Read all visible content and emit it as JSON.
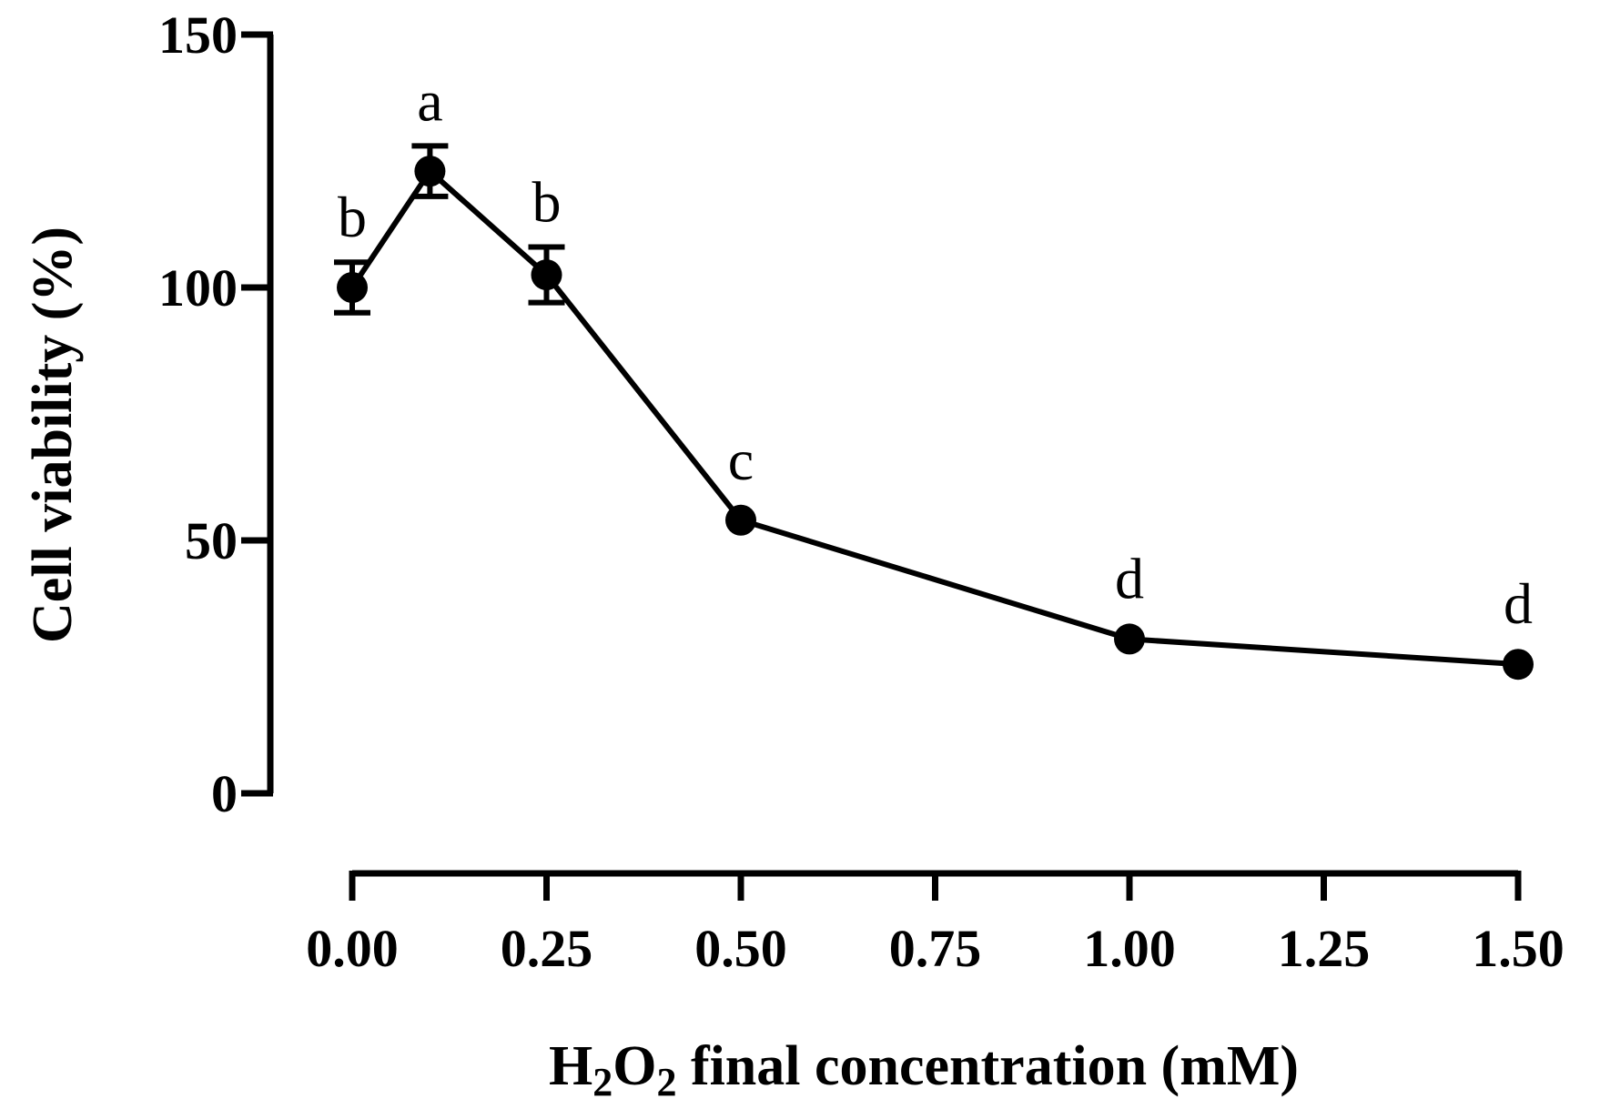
{
  "chart_data": {
    "type": "line",
    "title": "",
    "xlabel": {
      "prefix": "H",
      "sub1": "2",
      "mid": "O",
      "sub2": "2",
      "suffix": " final concentration (mM)"
    },
    "ylabel": "Cell viability (%)",
    "xlim": [
      0,
      1.5
    ],
    "ylim": [
      0,
      150
    ],
    "x_ticks": [
      0,
      0.25,
      0.5,
      0.75,
      1.0,
      1.25,
      1.5
    ],
    "x_tick_labels": [
      "0.00",
      "0.25",
      "0.50",
      "0.75",
      "1.00",
      "1.25",
      "1.50"
    ],
    "y_ticks": [
      0,
      50,
      100,
      150
    ],
    "y_tick_labels": [
      "0",
      "50",
      "100",
      "150"
    ],
    "grid": false,
    "series": [
      {
        "x": [
          0,
          0.1,
          0.25,
          0.5,
          1.0,
          1.5
        ],
        "y": [
          100,
          123,
          102.5,
          54,
          30.5,
          25.5
        ],
        "err": [
          5,
          5,
          5.5,
          0,
          0,
          0
        ],
        "labels": [
          "b",
          "a",
          "b",
          "c",
          "d",
          "d"
        ]
      }
    ]
  }
}
